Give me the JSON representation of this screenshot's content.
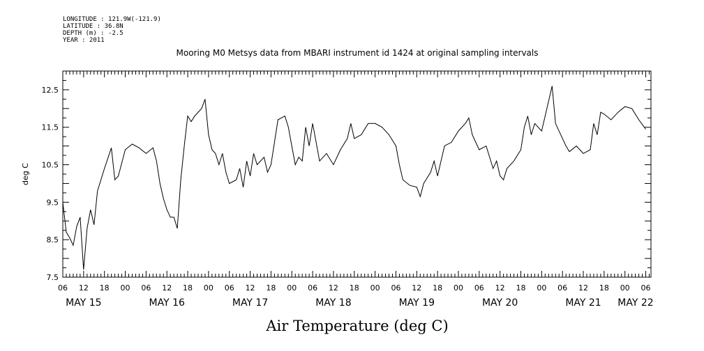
{
  "header_info": {
    "longitude": "LONGITUDE : 121.9W(-121.9)",
    "latitude": "LATITUDE : 36.8N",
    "depth": "DEPTH (m) : -2.5",
    "year": "YEAR : 2011"
  },
  "chart_data": {
    "type": "line",
    "title": "Mooring M0 Metsys data from MBARI instrument id 1424 at original sampling intervals",
    "xlabel": "Air Temperature (deg C)",
    "ylabel": "deg C",
    "ylim": [
      7.5,
      13.0
    ],
    "yticks": [
      "7.5",
      "8.5",
      "9.5",
      "10.5",
      "11.5",
      "12.5"
    ],
    "xlim": [
      "2011-05-15 06:00",
      "2011-05-22 07:30"
    ],
    "hour_ticks": [
      "06",
      "12",
      "18",
      "00",
      "06",
      "12",
      "18",
      "00",
      "06",
      "12",
      "18",
      "00",
      "06",
      "12",
      "18",
      "00",
      "06",
      "12",
      "18",
      "00",
      "06",
      "12",
      "18",
      "00",
      "06",
      "12",
      "18",
      "00",
      "06"
    ],
    "day_labels": [
      "MAY 15",
      "MAY 16",
      "MAY 17",
      "MAY 18",
      "MAY 19",
      "MAY 20",
      "MAY 21",
      "MAY 22"
    ],
    "grid": false,
    "series": [
      {
        "color": "#000000",
        "points": [
          [
            "2011-05-15 06:00",
            9.5
          ],
          [
            "2011-05-15 07:00",
            8.7
          ],
          [
            "2011-05-15 08:00",
            8.55
          ],
          [
            "2011-05-15 09:00",
            8.35
          ],
          [
            "2011-05-15 10:00",
            8.85
          ],
          [
            "2011-05-15 11:00",
            9.1
          ],
          [
            "2011-05-15 12:00",
            7.7
          ],
          [
            "2011-05-15 13:00",
            8.8
          ],
          [
            "2011-05-15 14:00",
            9.3
          ],
          [
            "2011-05-15 15:00",
            8.9
          ],
          [
            "2011-05-15 16:00",
            9.8
          ],
          [
            "2011-05-15 18:00",
            10.4
          ],
          [
            "2011-05-15 20:00",
            10.95
          ],
          [
            "2011-05-15 21:00",
            10.1
          ],
          [
            "2011-05-15 22:00",
            10.2
          ],
          [
            "2011-05-16 00:00",
            10.9
          ],
          [
            "2011-05-16 02:00",
            11.05
          ],
          [
            "2011-05-16 04:00",
            10.95
          ],
          [
            "2011-05-16 06:00",
            10.8
          ],
          [
            "2011-05-16 08:00",
            10.95
          ],
          [
            "2011-05-16 09:00",
            10.6
          ],
          [
            "2011-05-16 10:00",
            10.0
          ],
          [
            "2011-05-16 11:00",
            9.6
          ],
          [
            "2011-05-16 12:00",
            9.3
          ],
          [
            "2011-05-16 13:00",
            9.1
          ],
          [
            "2011-05-16 14:00",
            9.1
          ],
          [
            "2011-05-16 15:00",
            8.8
          ],
          [
            "2011-05-16 16:00",
            10.1
          ],
          [
            "2011-05-16 17:00",
            11.0
          ],
          [
            "2011-05-16 18:00",
            11.8
          ],
          [
            "2011-05-16 19:00",
            11.65
          ],
          [
            "2011-05-16 20:00",
            11.8
          ],
          [
            "2011-05-16 22:00",
            12.0
          ],
          [
            "2011-05-16 23:00",
            12.25
          ],
          [
            "2011-05-17 00:00",
            11.3
          ],
          [
            "2011-05-17 01:00",
            10.9
          ],
          [
            "2011-05-17 02:00",
            10.8
          ],
          [
            "2011-05-17 03:00",
            10.5
          ],
          [
            "2011-05-17 04:00",
            10.8
          ],
          [
            "2011-05-17 05:00",
            10.3
          ],
          [
            "2011-05-17 06:00",
            10.0
          ],
          [
            "2011-05-17 08:00",
            10.1
          ],
          [
            "2011-05-17 09:00",
            10.4
          ],
          [
            "2011-05-17 10:00",
            9.9
          ],
          [
            "2011-05-17 11:00",
            10.6
          ],
          [
            "2011-05-17 12:00",
            10.2
          ],
          [
            "2011-05-17 13:00",
            10.8
          ],
          [
            "2011-05-17 14:00",
            10.5
          ],
          [
            "2011-05-17 16:00",
            10.7
          ],
          [
            "2011-05-17 17:00",
            10.3
          ],
          [
            "2011-05-17 18:00",
            10.5
          ],
          [
            "2011-05-17 20:00",
            11.7
          ],
          [
            "2011-05-17 22:00",
            11.8
          ],
          [
            "2011-05-17 23:00",
            11.5
          ],
          [
            "2011-05-18 00:00",
            11.0
          ],
          [
            "2011-05-18 01:00",
            10.5
          ],
          [
            "2011-05-18 02:00",
            10.7
          ],
          [
            "2011-05-18 03:00",
            10.6
          ],
          [
            "2011-05-18 04:00",
            11.5
          ],
          [
            "2011-05-18 05:00",
            11.0
          ],
          [
            "2011-05-18 06:00",
            11.6
          ],
          [
            "2011-05-18 07:00",
            11.1
          ],
          [
            "2011-05-18 08:00",
            10.6
          ],
          [
            "2011-05-18 10:00",
            10.8
          ],
          [
            "2011-05-18 12:00",
            10.5
          ],
          [
            "2011-05-18 14:00",
            10.9
          ],
          [
            "2011-05-18 16:00",
            11.2
          ],
          [
            "2011-05-18 17:00",
            11.6
          ],
          [
            "2011-05-18 18:00",
            11.2
          ],
          [
            "2011-05-18 20:00",
            11.3
          ],
          [
            "2011-05-18 22:00",
            11.6
          ],
          [
            "2011-05-19 00:00",
            11.6
          ],
          [
            "2011-05-19 02:00",
            11.5
          ],
          [
            "2011-05-19 04:00",
            11.3
          ],
          [
            "2011-05-19 06:00",
            11.0
          ],
          [
            "2011-05-19 07:00",
            10.5
          ],
          [
            "2011-05-19 08:00",
            10.1
          ],
          [
            "2011-05-19 10:00",
            9.95
          ],
          [
            "2011-05-19 12:00",
            9.9
          ],
          [
            "2011-05-19 13:00",
            9.65
          ],
          [
            "2011-05-19 14:00",
            10.0
          ],
          [
            "2011-05-19 16:00",
            10.3
          ],
          [
            "2011-05-19 17:00",
            10.6
          ],
          [
            "2011-05-19 18:00",
            10.2
          ],
          [
            "2011-05-19 20:00",
            11.0
          ],
          [
            "2011-05-19 22:00",
            11.1
          ],
          [
            "2011-05-20 00:00",
            11.4
          ],
          [
            "2011-05-20 02:00",
            11.6
          ],
          [
            "2011-05-20 03:00",
            11.75
          ],
          [
            "2011-05-20 04:00",
            11.3
          ],
          [
            "2011-05-20 06:00",
            10.9
          ],
          [
            "2011-05-20 08:00",
            11.0
          ],
          [
            "2011-05-20 10:00",
            10.4
          ],
          [
            "2011-05-20 11:00",
            10.6
          ],
          [
            "2011-05-20 12:00",
            10.2
          ],
          [
            "2011-05-20 13:00",
            10.1
          ],
          [
            "2011-05-20 14:00",
            10.4
          ],
          [
            "2011-05-20 16:00",
            10.6
          ],
          [
            "2011-05-20 18:00",
            10.9
          ],
          [
            "2011-05-20 19:00",
            11.5
          ],
          [
            "2011-05-20 20:00",
            11.8
          ],
          [
            "2011-05-20 21:00",
            11.3
          ],
          [
            "2011-05-20 22:00",
            11.6
          ],
          [
            "2011-05-21 00:00",
            11.4
          ],
          [
            "2011-05-21 01:00",
            11.8
          ],
          [
            "2011-05-21 02:00",
            12.2
          ],
          [
            "2011-05-21 03:00",
            12.6
          ],
          [
            "2011-05-21 04:00",
            11.6
          ],
          [
            "2011-05-21 06:00",
            11.2
          ],
          [
            "2011-05-21 07:00",
            11.0
          ],
          [
            "2011-05-21 08:00",
            10.85
          ],
          [
            "2011-05-21 10:00",
            11.0
          ],
          [
            "2011-05-21 12:00",
            10.8
          ],
          [
            "2011-05-21 14:00",
            10.9
          ],
          [
            "2011-05-21 15:00",
            11.6
          ],
          [
            "2011-05-21 16:00",
            11.3
          ],
          [
            "2011-05-21 17:00",
            11.9
          ],
          [
            "2011-05-21 18:00",
            11.85
          ],
          [
            "2011-05-21 20:00",
            11.7
          ],
          [
            "2011-05-21 22:00",
            11.9
          ],
          [
            "2011-05-22 00:00",
            12.05
          ],
          [
            "2011-05-22 02:00",
            12.0
          ],
          [
            "2011-05-22 04:00",
            11.7
          ],
          [
            "2011-05-22 06:00",
            11.45
          ]
        ]
      }
    ]
  }
}
